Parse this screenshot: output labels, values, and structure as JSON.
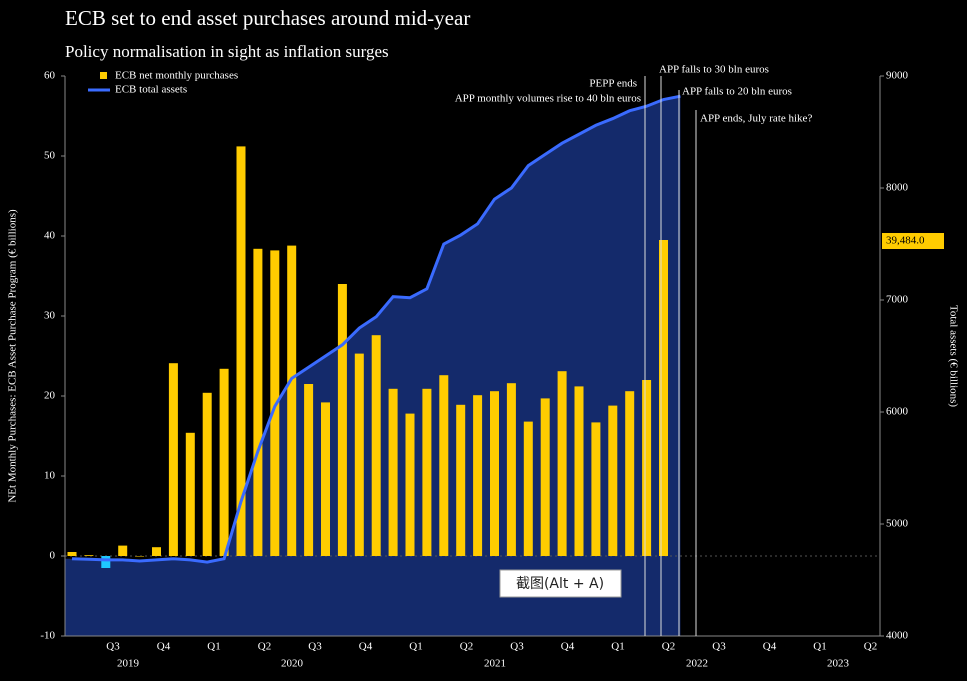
{
  "chart_data": {
    "type": "bar_line",
    "title": "ECB set to end asset purchases around mid-year",
    "subtitle": "Policy normalisation in sight as inflation surges",
    "y_label": "NEt Monthly Purchases: ECB Asset Purchase Program (€ billions)",
    "y2_label": "Total assets (€ billions)",
    "quarters": [
      "Q3",
      "Q4",
      "Q1",
      "Q2",
      "Q3",
      "Q4",
      "Q1",
      "Q2",
      "Q3",
      "Q4",
      "Q1",
      "Q2",
      "Q3",
      "Q4",
      "Q1",
      "Q2"
    ],
    "years": [
      "2019",
      "2020",
      "2021",
      "2022",
      "2023"
    ],
    "ylim": [
      -10,
      60
    ],
    "yticks": [
      -10,
      0,
      10,
      20,
      30,
      40,
      50,
      60
    ],
    "y2lim": [
      4000,
      9000
    ],
    "y2ticks": [
      4000,
      5000,
      6000,
      7000,
      8000,
      9000
    ],
    "series": [
      {
        "name": "ECB net monthly purchases",
        "color": "#ffcc00",
        "negative_color": "#1ec8ff",
        "values": [
          0.5,
          0.1,
          -1.5,
          1.3,
          0,
          1.1,
          24.1,
          15.4,
          20.4,
          23.4,
          51.2,
          38.4,
          38.2,
          38.8,
          21.5,
          19.2,
          34,
          25.3,
          27.6,
          20.9,
          17.8,
          20.9,
          22.6,
          18.9,
          20.1,
          20.6,
          21.6,
          16.8,
          19.7,
          23.1,
          21.2,
          16.7,
          18.8,
          20.6,
          22,
          39.5
        ]
      },
      {
        "name": "ECB total assets",
        "color": "#3a6bff",
        "axis": "y2",
        "values": [
          4690,
          4685,
          4680,
          4680,
          4670,
          4680,
          4690,
          4680,
          4660,
          4690,
          5200,
          5650,
          6050,
          6300,
          6400,
          6500,
          6600,
          6750,
          6850,
          7030,
          7020,
          7100,
          7500,
          7580,
          7680,
          7900,
          8000,
          8200,
          8300,
          8400,
          8480,
          8560,
          8620,
          8690,
          8730,
          8790,
          8820
        ]
      }
    ],
    "annotations": [
      "PEPP ends",
      "APP monthly volumes rise to 40 bln euros",
      "APP falls to 30 bln euros",
      "APP falls to 20 bln euros",
      "APP ends, July rate hike?"
    ],
    "price_tag": "39,484.0",
    "overlay_text": "截图(Alt + A)"
  }
}
